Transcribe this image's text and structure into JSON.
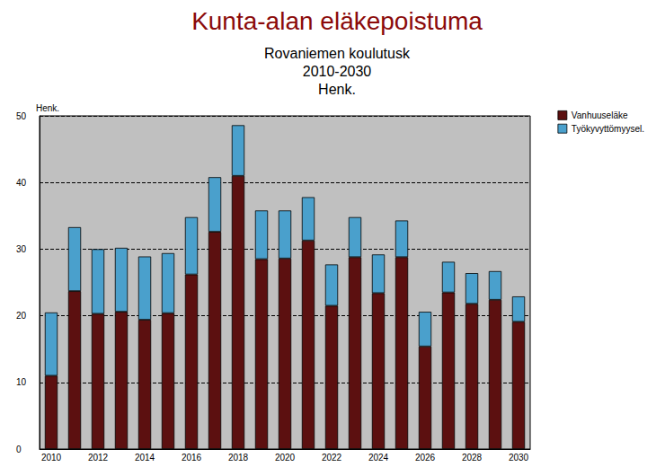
{
  "chart_data": {
    "type": "bar",
    "title": "Kunta-alan eläkepoistuma",
    "subtitle": "Rovaniemen koulutusk\n2010-2030\nHenk.",
    "ylabel": "Henk.",
    "categories": [
      "2010",
      null,
      "2012",
      null,
      "2014",
      null,
      "2016",
      null,
      "2018",
      null,
      "2020",
      null,
      "2022",
      null,
      "2024",
      null,
      "2026",
      null,
      "2028",
      null,
      "2030"
    ],
    "series": [
      {
        "name": "Vanhuuseläke",
        "color": "#5c1010",
        "values": [
          11,
          23.7,
          20.3,
          20.6,
          19.4,
          20.4,
          26.2,
          32.6,
          41,
          28.5,
          28.6,
          31.3,
          21.5,
          28.8,
          23.4,
          28.8,
          15.4,
          23.5,
          21.8,
          22.4,
          19.1
        ]
      },
      {
        "name": "Työkyvyttömyysel.",
        "color": "#4aa0cc",
        "values": [
          9.5,
          9.6,
          9.7,
          9.6,
          9.5,
          9.0,
          8.6,
          8.2,
          7.6,
          7.3,
          7.2,
          6.5,
          6.2,
          6.0,
          5.8,
          5.5,
          5.2,
          4.6,
          4.6,
          4.3,
          3.8
        ]
      }
    ],
    "stacked": true,
    "ylim": [
      0,
      50
    ],
    "yticks": [
      0,
      10,
      20,
      30,
      40,
      50
    ],
    "grid": true,
    "legend": "top-right"
  }
}
